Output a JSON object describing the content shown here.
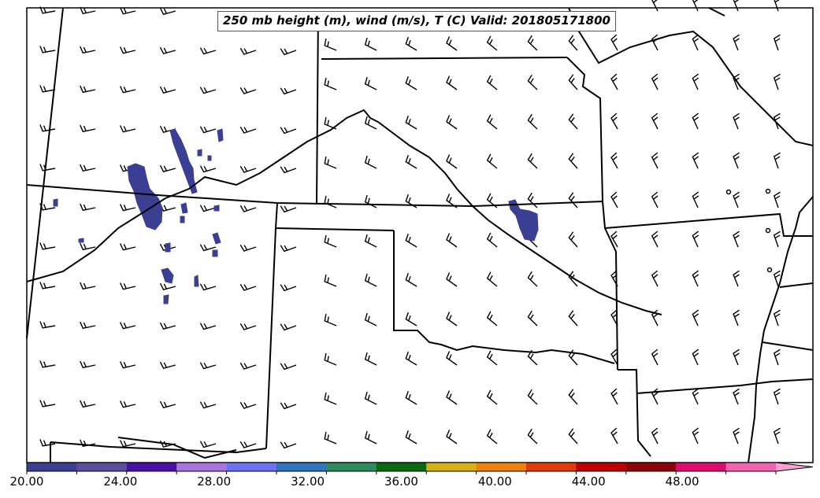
{
  "map": {
    "title": "250 mb height (m), wind (m/s), T (C) Valid: 201805171800",
    "field": "250 mb wind speed shading",
    "colorbar": {
      "ticks": [
        "20.00",
        "24.00",
        "28.00",
        "32.00",
        "36.00",
        "40.00",
        "44.00",
        "48.00"
      ],
      "min": 20,
      "max": 52,
      "extend": "max",
      "colors": [
        "#3b3f93",
        "#5a4f9c",
        "#4a0fa8",
        "#a874e0",
        "#6a72f5",
        "#2f76c0",
        "#2f8d5d",
        "#0a6a10",
        "#d9b112",
        "#f28109",
        "#e23a0b",
        "#c00000",
        "#8f0008",
        "#e00a72",
        "#f262b0",
        "#ffa0d4"
      ]
    },
    "wind_barbs": {
      "west_region": "westerly / west-southwesterly flow",
      "central_region": "southwesterly flow",
      "east_region": "south-southwesterly flow",
      "calm_points": 4
    },
    "jet_shading_color": "#3b3f93",
    "boundaries_color": "#000000"
  }
}
